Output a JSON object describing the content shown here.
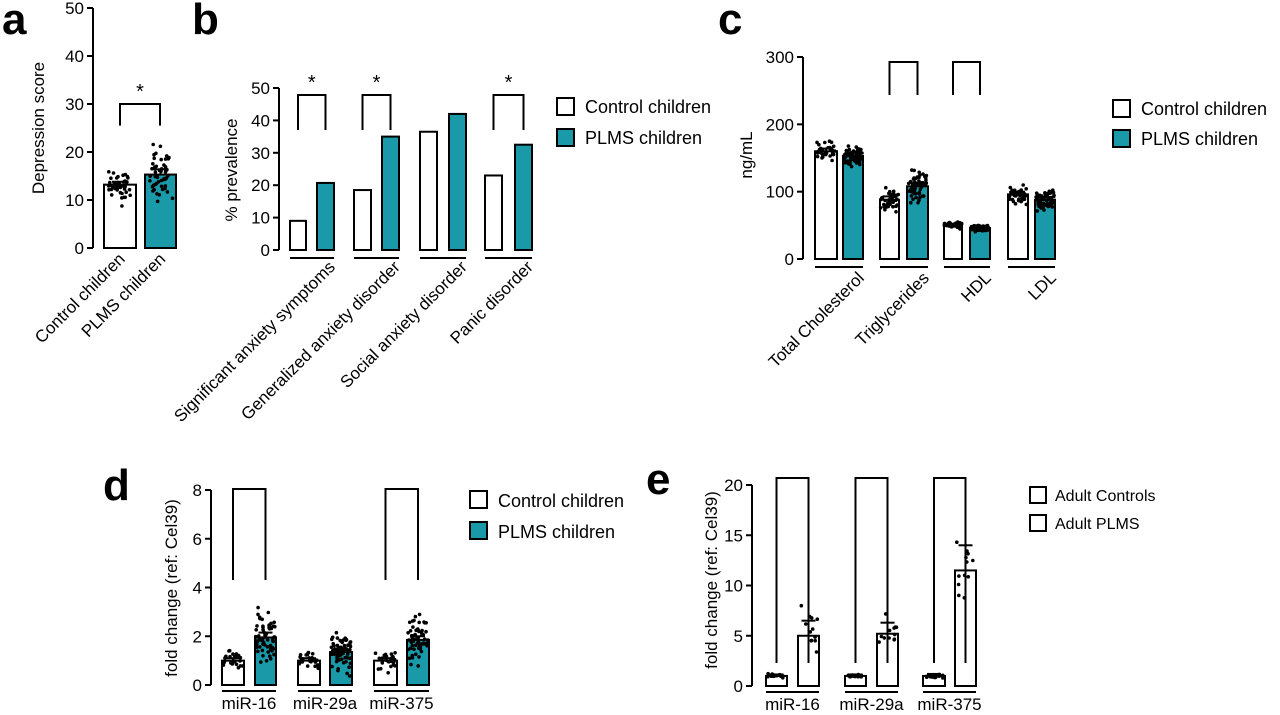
{
  "colors": {
    "control_fill": "#ffffff",
    "plms_fill": "#1a9aa8",
    "adult_fill": "#ffffff",
    "stroke": "#000000"
  },
  "chart_data": [
    {
      "id": "a",
      "panel_label": "a",
      "type": "bar",
      "ylabel": "Depression score",
      "ylim": [
        0,
        50
      ],
      "yticks": [
        0,
        10,
        20,
        30,
        40,
        50
      ],
      "categories": [
        "Control children",
        "PLMS children"
      ],
      "series": [
        {
          "values": [
            13.2,
            15.3
          ],
          "sem": [
            0.6,
            1.1
          ]
        }
      ],
      "significance": [
        {
          "from": 0,
          "to": 1,
          "label": "*"
        }
      ],
      "scatter": true
    },
    {
      "id": "b",
      "panel_label": "b",
      "type": "bar",
      "ylabel": "% prevalence",
      "ylim": [
        0,
        50
      ],
      "yticks": [
        0,
        10,
        20,
        30,
        40,
        50
      ],
      "categories": [
        "Significant anxiety symptoms",
        "Generalized anxiety disorder",
        "Social anxiety disorder",
        "Panic disorder"
      ],
      "series": [
        {
          "name": "Control children",
          "values": [
            9,
            18.5,
            36.5,
            23
          ]
        },
        {
          "name": "PLMS children",
          "values": [
            20.7,
            35,
            42,
            32.5
          ]
        }
      ],
      "significance": [
        {
          "group": 0,
          "label": "*"
        },
        {
          "group": 1,
          "label": "*"
        },
        {
          "group": 3,
          "label": "*"
        }
      ],
      "legend": [
        "Control children",
        "PLMS children"
      ]
    },
    {
      "id": "c",
      "panel_label": "c",
      "type": "bar",
      "ylabel": "ng/mL",
      "ylim": [
        0,
        300
      ],
      "yticks": [
        0,
        100,
        200,
        300
      ],
      "categories": [
        "Total Cholesterol",
        "Triglycerides",
        "HDL",
        "LDL"
      ],
      "series": [
        {
          "name": "Control children",
          "values": [
            160,
            88,
            50,
            96
          ],
          "sem": [
            4,
            5,
            2,
            4
          ]
        },
        {
          "name": "PLMS children",
          "values": [
            153,
            108,
            46,
            88
          ],
          "sem": [
            4,
            5,
            2,
            4
          ]
        }
      ],
      "significance": [
        {
          "group": 1,
          "label": ""
        },
        {
          "group": 2,
          "label": ""
        }
      ],
      "legend": [
        "Control children",
        "PLMS children"
      ],
      "scatter": true
    },
    {
      "id": "d",
      "panel_label": "d",
      "type": "bar",
      "ylabel": "fold change (ref: Cel39)",
      "ylim": [
        0,
        8
      ],
      "yticks": [
        0,
        2,
        4,
        6,
        8
      ],
      "categories": [
        "miR-16",
        "miR-29a",
        "miR-375"
      ],
      "series": [
        {
          "name": "Control children",
          "values": [
            1.0,
            1.0,
            1.0
          ],
          "sem": [
            0.1,
            0.1,
            0.1
          ]
        },
        {
          "name": "PLMS children",
          "values": [
            1.95,
            1.35,
            1.85
          ],
          "sem": [
            0.2,
            0.15,
            0.15
          ]
        }
      ],
      "significance": [
        {
          "group": 0,
          "label": ""
        },
        {
          "group": 2,
          "label": ""
        }
      ],
      "legend": [
        "Control children",
        "PLMS children"
      ],
      "scatter": true
    },
    {
      "id": "e",
      "panel_label": "e",
      "type": "bar",
      "ylabel": "fold change (ref: Cel39)",
      "ylim": [
        0,
        20
      ],
      "yticks": [
        0,
        5,
        10,
        15,
        20
      ],
      "categories": [
        "miR-16",
        "miR-29a",
        "miR-375"
      ],
      "series": [
        {
          "name": "Adult Controls",
          "values": [
            1.0,
            1.0,
            1.0
          ],
          "sem": [
            0.15,
            0.15,
            0.2
          ]
        },
        {
          "name": "Adult PLMS",
          "values": [
            5.0,
            5.2,
            11.5
          ],
          "sem": [
            1.5,
            1.1,
            2.5
          ]
        }
      ],
      "significance": [
        {
          "group": 0,
          "label": ""
        },
        {
          "group": 1,
          "label": ""
        },
        {
          "group": 2,
          "label": ""
        }
      ],
      "legend": [
        "Adult Controls",
        "Adult PLMS"
      ],
      "scatter": true
    }
  ]
}
